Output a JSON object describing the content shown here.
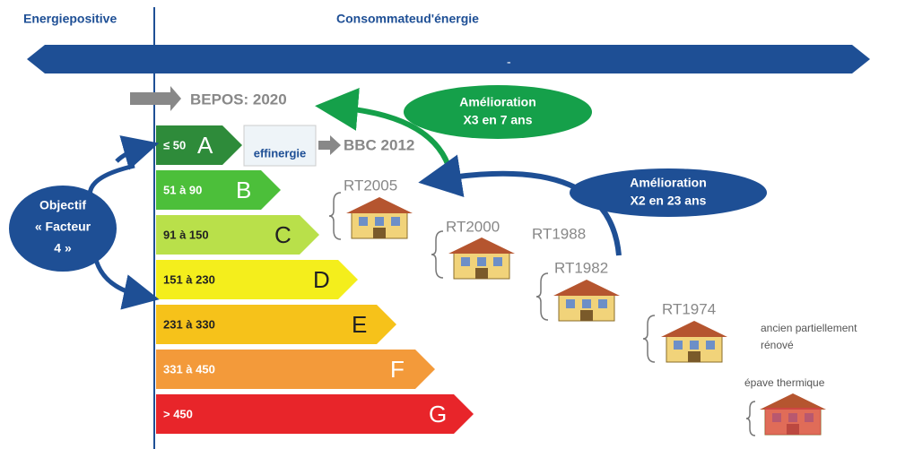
{
  "header": {
    "left": "Energiepositive",
    "right": "Consommateud'énergie",
    "arrow_label": "-"
  },
  "bepos": "BEPOS: 2020",
  "classes": [
    {
      "range": "≤ 50",
      "letter": "A",
      "color": "#2e8b3a"
    },
    {
      "range": "51 à 90",
      "letter": "B",
      "color": "#4cbf3a"
    },
    {
      "range": "91 à 150",
      "letter": "C",
      "color": "#b9e04a"
    },
    {
      "range": "151 à 230",
      "letter": "D",
      "color": "#f4ee1c"
    },
    {
      "range": "231 à 330",
      "letter": "E",
      "color": "#f6c21a"
    },
    {
      "range": "331 à 450",
      "letter": "F",
      "color": "#f39a3a"
    },
    {
      "range": "> 450",
      "letter": "G",
      "color": "#e8252a"
    }
  ],
  "logo": "effinergie",
  "bbc": "BBC 2012",
  "callouts": [
    {
      "lines": [
        "Amélioration",
        "X3 en 7 ans"
      ],
      "color": "#15a04a"
    },
    {
      "lines": [
        "Amélioration",
        "X2 en 23 ans"
      ],
      "color": "#1e4f95"
    }
  ],
  "objective": {
    "lines": [
      "Objectif",
      "« Facteur",
      "4 »"
    ],
    "color": "#1e4f95"
  },
  "standards": [
    "RT2005",
    "RT2000",
    "RT1988",
    "RT1982",
    "RT1974"
  ],
  "renovated": [
    "ancien partiellement",
    "rénové"
  ],
  "wreck": "épave thermique"
}
